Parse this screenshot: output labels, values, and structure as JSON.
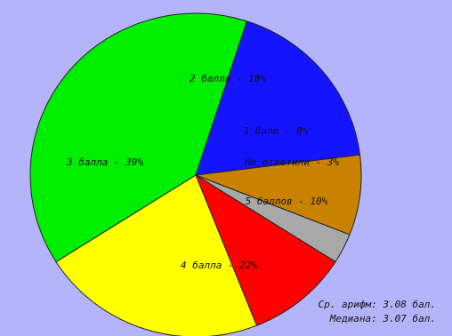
{
  "chart_data": {
    "type": "pie",
    "slices": [
      {
        "label": "2 балла - 18%",
        "value": 18,
        "color": "#1414ff"
      },
      {
        "label": "1 балл - 8%",
        "value": 8,
        "color": "#c88200"
      },
      {
        "label": "Не ответили - 3%",
        "value": 3,
        "color": "#a8a8a8"
      },
      {
        "label": "5 баллов - 10%",
        "value": 10,
        "color": "#ff0000"
      },
      {
        "label": "4 балла - 22%",
        "value": 22,
        "color": "#ffff00"
      },
      {
        "label": "3 балла - 39%",
        "value": 39,
        "color": "#00ee00"
      }
    ],
    "start_angle_deg": -72
  },
  "stats": {
    "mean": "Ср. арифм: 3.08 бал.",
    "median": "Медиана: 3.07 бал."
  }
}
